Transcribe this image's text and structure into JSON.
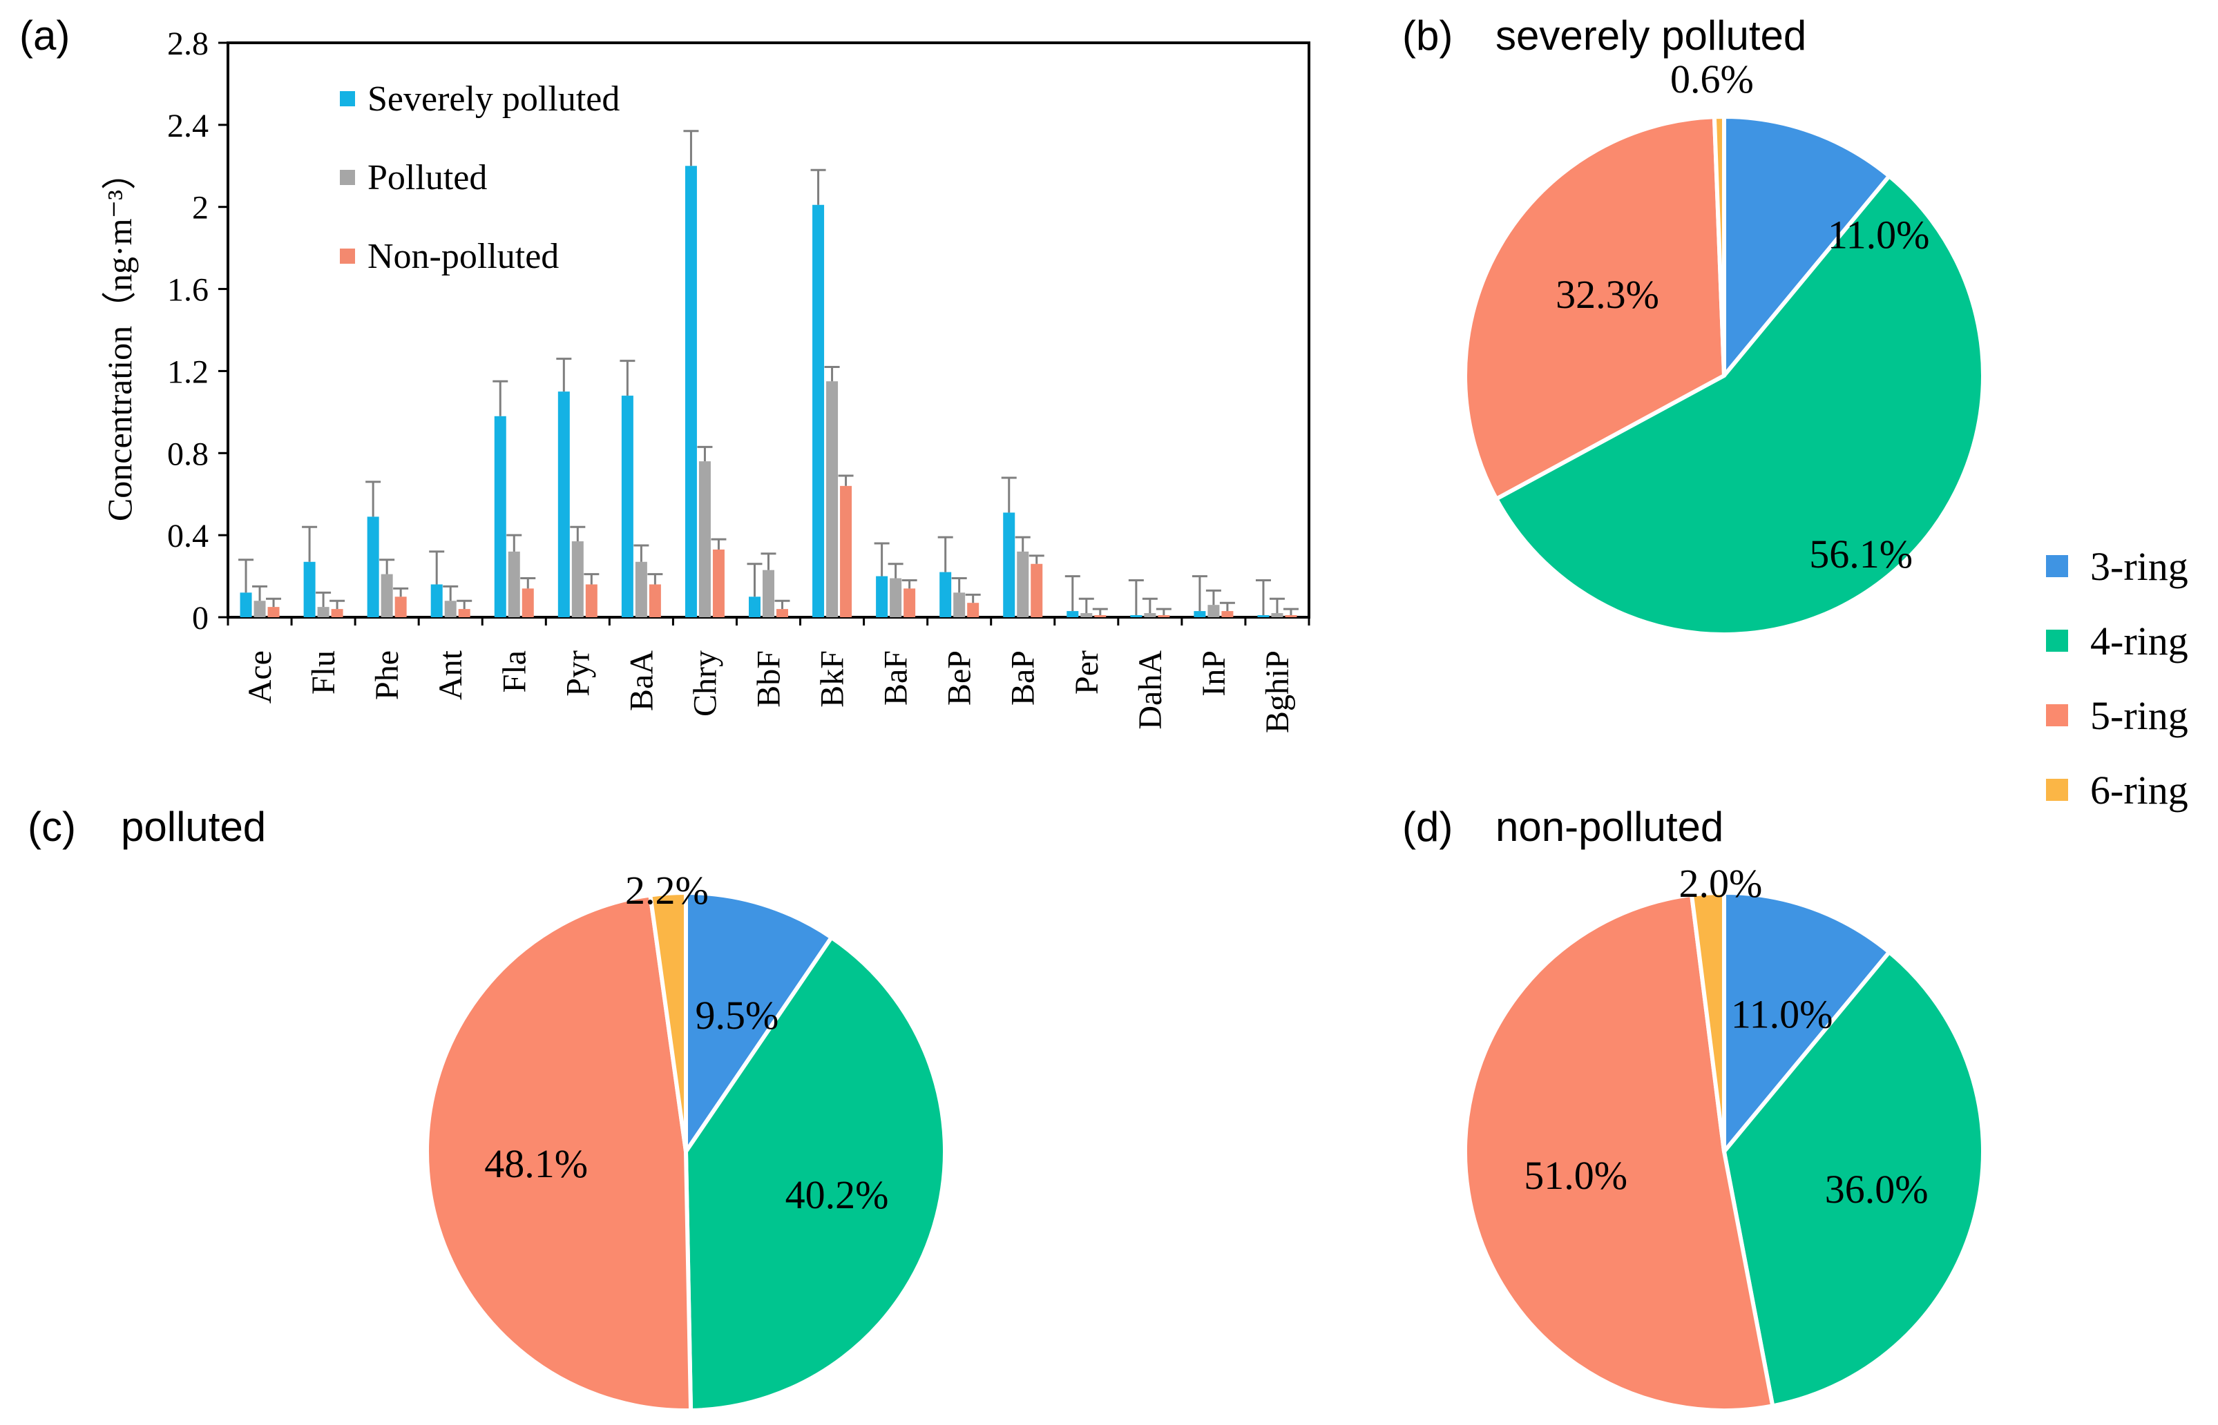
{
  "colors": {
    "severely": "#14b2e4",
    "polluted": "#a6a6a6",
    "nonpolluted": "#f3896f",
    "ring3": "#3f94e3",
    "ring4": "#00c58f",
    "ring5": "#fa8a6e",
    "ring6": "#fbb646",
    "errorbar": "#7f7f7f"
  },
  "chart_data": [
    {
      "type": "bar",
      "panel_label": "(a)",
      "title": "",
      "ylabel": "Concentration（ng·m⁻³）",
      "ylim": [
        0,
        2.8
      ],
      "yticks": [
        "0",
        "0.4",
        "0.8",
        "1.2",
        "1.6",
        "2",
        "2.4",
        "2.8"
      ],
      "categories": [
        "Ace",
        "Flu",
        "Phe",
        "Ant",
        "Fla",
        "Pyr",
        "BaA",
        "Chry",
        "BbF",
        "BkF",
        "BaF",
        "BeP",
        "BaP",
        "Per",
        "DahA",
        "InP",
        "BghiP"
      ],
      "series": [
        {
          "name": "Severely polluted",
          "color_key": "severely",
          "values": [
            0.12,
            0.27,
            0.49,
            0.16,
            0.98,
            1.1,
            1.08,
            2.2,
            0.1,
            2.01,
            0.2,
            0.22,
            0.51,
            0.03,
            0.01,
            0.03,
            0.01
          ],
          "errors": [
            0.16,
            0.17,
            0.17,
            0.16,
            0.17,
            0.16,
            0.17,
            0.17,
            0.16,
            0.17,
            0.16,
            0.17,
            0.17,
            0.17,
            0.17,
            0.17,
            0.17
          ]
        },
        {
          "name": "Polluted",
          "color_key": "polluted",
          "values": [
            0.08,
            0.05,
            0.21,
            0.08,
            0.32,
            0.37,
            0.27,
            0.76,
            0.23,
            1.15,
            0.19,
            0.12,
            0.32,
            0.02,
            0.02,
            0.06,
            0.02
          ],
          "errors": [
            0.07,
            0.07,
            0.07,
            0.07,
            0.08,
            0.07,
            0.08,
            0.07,
            0.08,
            0.07,
            0.07,
            0.07,
            0.07,
            0.07,
            0.07,
            0.07,
            0.07
          ]
        },
        {
          "name": "Non-polluted",
          "color_key": "nonpolluted",
          "values": [
            0.05,
            0.04,
            0.1,
            0.04,
            0.14,
            0.16,
            0.16,
            0.33,
            0.04,
            0.64,
            0.14,
            0.07,
            0.26,
            0.01,
            0.01,
            0.03,
            0.01
          ],
          "errors": [
            0.04,
            0.04,
            0.04,
            0.04,
            0.05,
            0.05,
            0.05,
            0.05,
            0.04,
            0.05,
            0.04,
            0.04,
            0.04,
            0.03,
            0.03,
            0.04,
            0.03
          ]
        }
      ]
    },
    {
      "type": "pie",
      "panel_label": "(b)",
      "title": "severely polluted",
      "slices": [
        {
          "name": "3-ring",
          "value": 11.0,
          "label": "11.0%",
          "color_key": "ring3"
        },
        {
          "name": "4-ring",
          "value": 56.1,
          "label": "56.1%",
          "color_key": "ring4"
        },
        {
          "name": "5-ring",
          "value": 32.3,
          "label": "32.3%",
          "color_key": "ring5"
        },
        {
          "name": "6-ring",
          "value": 0.6,
          "label": "0.6%",
          "color_key": "ring6"
        }
      ]
    },
    {
      "type": "pie",
      "panel_label": "(c)",
      "title": "polluted",
      "slices": [
        {
          "name": "3-ring",
          "value": 9.5,
          "label": "9.5%",
          "color_key": "ring3"
        },
        {
          "name": "4-ring",
          "value": 40.2,
          "label": "40.2%",
          "color_key": "ring4"
        },
        {
          "name": "5-ring",
          "value": 48.1,
          "label": "48.1%",
          "color_key": "ring5"
        },
        {
          "name": "6-ring",
          "value": 2.2,
          "label": "2.2%",
          "color_key": "ring6"
        }
      ]
    },
    {
      "type": "pie",
      "panel_label": "(d)",
      "title": "non-polluted",
      "slices": [
        {
          "name": "3-ring",
          "value": 11.0,
          "label": "11.0%",
          "color_key": "ring3"
        },
        {
          "name": "4-ring",
          "value": 36.0,
          "label": "36.0%",
          "color_key": "ring4"
        },
        {
          "name": "5-ring",
          "value": 51.0,
          "label": "51.0%",
          "color_key": "ring5"
        },
        {
          "name": "6-ring",
          "value": 2.0,
          "label": "2.0%",
          "color_key": "ring6"
        }
      ]
    }
  ],
  "pie_legend": [
    {
      "label": "3-ring",
      "color_key": "ring3"
    },
    {
      "label": "4-ring",
      "color_key": "ring4"
    },
    {
      "label": "5-ring",
      "color_key": "ring5"
    },
    {
      "label": "6-ring",
      "color_key": "ring6"
    }
  ]
}
